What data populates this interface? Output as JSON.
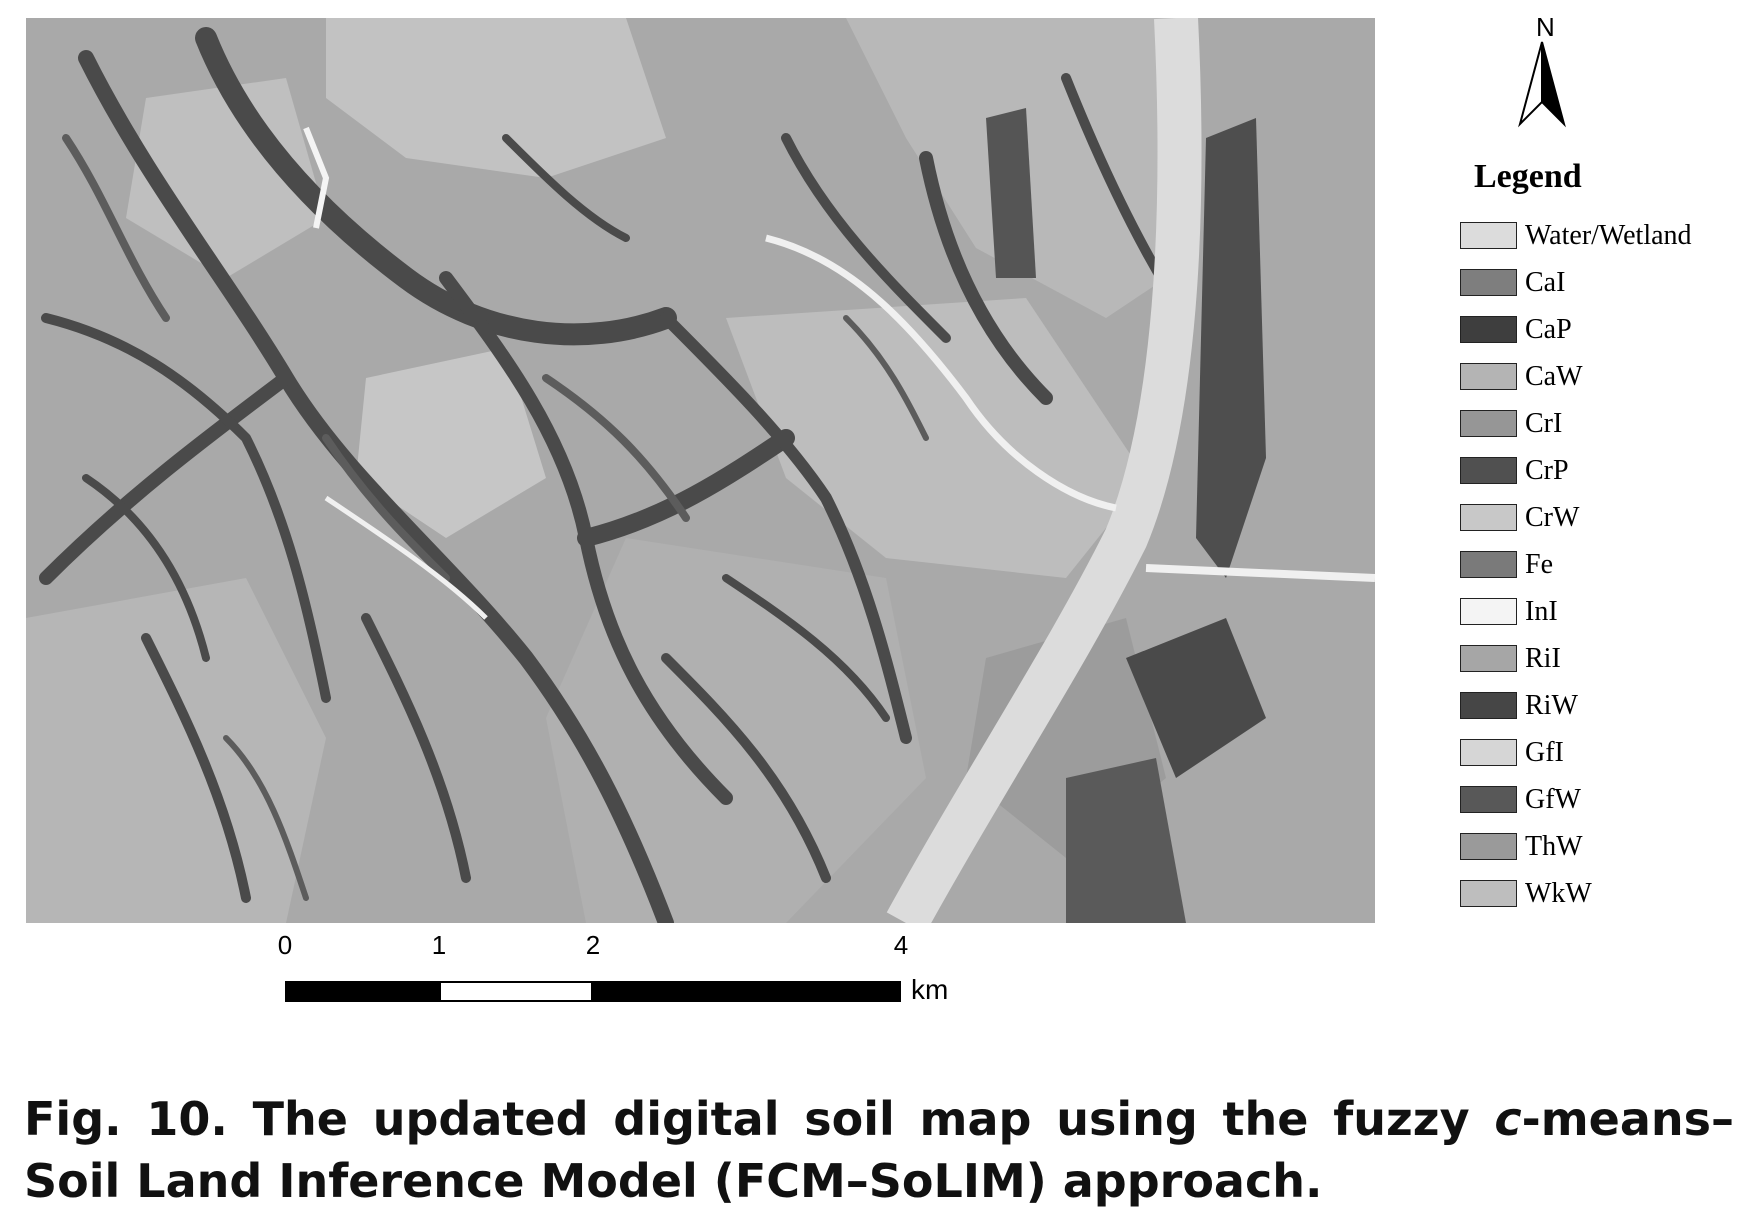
{
  "north_arrow": {
    "label": "N"
  },
  "legend": {
    "title": "Legend",
    "items": [
      {
        "label": "Water/Wetland",
        "color": "#dcdcdc"
      },
      {
        "label": "CaI",
        "color": "#7e7e7e"
      },
      {
        "label": "CaP",
        "color": "#3e3e3e"
      },
      {
        "label": "CaW",
        "color": "#b4b4b4"
      },
      {
        "label": "CrI",
        "color": "#969696"
      },
      {
        "label": "CrP",
        "color": "#505050"
      },
      {
        "label": "CrW",
        "color": "#c8c8c8"
      },
      {
        "label": "Fe",
        "color": "#7a7a7a"
      },
      {
        "label": "InI",
        "color": "#f4f4f4"
      },
      {
        "label": "RiI",
        "color": "#a6a6a6"
      },
      {
        "label": "RiW",
        "color": "#464646"
      },
      {
        "label": "GfI",
        "color": "#d6d6d6"
      },
      {
        "label": "GfW",
        "color": "#585858"
      },
      {
        "label": "ThW",
        "color": "#9a9a9a"
      },
      {
        "label": "WkW",
        "color": "#bebebe"
      }
    ]
  },
  "scale_bar": {
    "ticks": [
      "0",
      "1",
      "2",
      "4"
    ],
    "unit": "km",
    "segments": [
      {
        "from": 0,
        "to": 1,
        "fill": "#000000"
      },
      {
        "from": 1,
        "to": 2,
        "fill": "#ffffff"
      },
      {
        "from": 2,
        "to": 4,
        "fill": "#000000"
      }
    ]
  },
  "caption": {
    "prefix": "Fig. 10. The updated digital soil map using the fuzzy ",
    "italic": "c",
    "suffix": "-means–Soil Land Inference Model (FCM–SoLIM) approach."
  }
}
